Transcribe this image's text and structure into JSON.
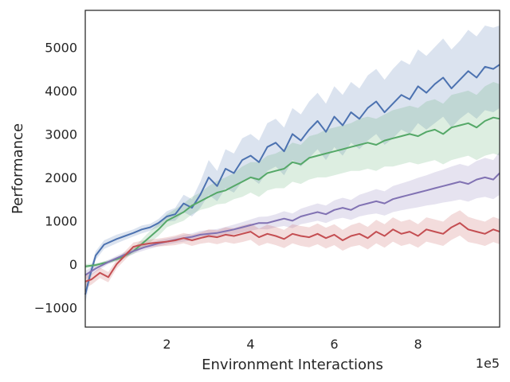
{
  "chart_data": {
    "type": "line",
    "xlabel": "Environment Interactions",
    "ylabel": "Performance",
    "x_offset_label": "1e5",
    "xlim": [
      0.05,
      9.95
    ],
    "ylim": [
      -1450,
      5850
    ],
    "xticks": [
      2,
      4,
      6,
      8
    ],
    "yticks": [
      -1000,
      0,
      1000,
      2000,
      3000,
      4000,
      5000
    ],
    "grid": false,
    "legend": "none",
    "series": [
      {
        "color": "#4c72b0",
        "x": [
          0.05,
          0.15,
          0.3,
          0.5,
          0.8,
          1.0,
          1.2,
          1.4,
          1.6,
          1.8,
          2.0,
          2.2,
          2.4,
          2.6,
          2.8,
          3.0,
          3.2,
          3.4,
          3.6,
          3.8,
          4.0,
          4.2,
          4.4,
          4.6,
          4.8,
          5.0,
          5.2,
          5.4,
          5.6,
          5.8,
          6.0,
          6.2,
          6.4,
          6.6,
          6.8,
          7.0,
          7.2,
          7.4,
          7.6,
          7.8,
          8.0,
          8.2,
          8.4,
          8.6,
          8.8,
          9.0,
          9.2,
          9.4,
          9.6,
          9.8,
          9.95
        ],
        "y": [
          -700,
          -300,
          200,
          450,
          580,
          650,
          720,
          800,
          850,
          950,
          1100,
          1150,
          1400,
          1300,
          1600,
          2000,
          1800,
          2200,
          2100,
          2400,
          2500,
          2350,
          2700,
          2800,
          2600,
          3000,
          2850,
          3100,
          3300,
          3050,
          3400,
          3200,
          3500,
          3350,
          3600,
          3750,
          3500,
          3700,
          3900,
          3800,
          4100,
          3950,
          4150,
          4300,
          4050,
          4250,
          4450,
          4300,
          4550,
          4500,
          4600
        ],
        "lower": [
          -900,
          -450,
          100,
          350,
          480,
          560,
          640,
          710,
          770,
          860,
          980,
          1000,
          1200,
          1100,
          1300,
          1600,
          1450,
          1750,
          1650,
          1900,
          2000,
          1850,
          2150,
          2250,
          2050,
          2400,
          2250,
          2450,
          2650,
          2400,
          2700,
          2500,
          2800,
          2650,
          2850,
          3000,
          2750,
          2900,
          3100,
          3000,
          3250,
          3100,
          3250,
          3400,
          3150,
          3350,
          3500,
          3350,
          3550,
          3500,
          3600
        ],
        "upper": [
          -500,
          -150,
          300,
          550,
          680,
          740,
          800,
          890,
          930,
          1040,
          1220,
          1300,
          1600,
          1500,
          1900,
          2400,
          2150,
          2650,
          2550,
          2900,
          3000,
          2850,
          3250,
          3350,
          3150,
          3600,
          3450,
          3750,
          3950,
          3700,
          4100,
          3900,
          4200,
          4050,
          4350,
          4500,
          4250,
          4500,
          4700,
          4600,
          4950,
          4800,
          5000,
          5200,
          4950,
          5150,
          5400,
          5250,
          5500,
          5450,
          5500
        ]
      },
      {
        "color": "#55a868",
        "x": [
          0.05,
          0.3,
          0.6,
          0.9,
          1.2,
          1.5,
          1.8,
          2.0,
          2.2,
          2.4,
          2.6,
          2.8,
          3.0,
          3.2,
          3.4,
          3.6,
          3.8,
          4.0,
          4.2,
          4.4,
          4.6,
          4.8,
          5.0,
          5.2,
          5.4,
          5.6,
          5.8,
          6.0,
          6.2,
          6.4,
          6.6,
          6.8,
          7.0,
          7.2,
          7.4,
          7.6,
          7.8,
          8.0,
          8.2,
          8.4,
          8.6,
          8.8,
          9.0,
          9.2,
          9.4,
          9.6,
          9.8,
          9.95
        ],
        "y": [
          -50,
          -20,
          50,
          150,
          300,
          550,
          800,
          1000,
          1100,
          1200,
          1350,
          1450,
          1550,
          1650,
          1700,
          1800,
          1900,
          2000,
          1950,
          2100,
          2150,
          2200,
          2350,
          2300,
          2450,
          2500,
          2550,
          2600,
          2650,
          2700,
          2750,
          2800,
          2750,
          2850,
          2900,
          2950,
          3000,
          2950,
          3050,
          3100,
          3000,
          3150,
          3200,
          3250,
          3150,
          3300,
          3380,
          3350
        ],
        "lower": [
          -100,
          -60,
          10,
          100,
          230,
          430,
          650,
          850,
          930,
          1000,
          1150,
          1250,
          1300,
          1380,
          1400,
          1500,
          1550,
          1650,
          1550,
          1700,
          1750,
          1750,
          1900,
          1850,
          1950,
          2000,
          2000,
          2050,
          2100,
          2150,
          2150,
          2200,
          2150,
          2250,
          2250,
          2300,
          2350,
          2300,
          2350,
          2400,
          2300,
          2400,
          2450,
          2500,
          2400,
          2500,
          2550,
          2500
        ],
        "upper": [
          0,
          20,
          90,
          200,
          370,
          670,
          950,
          1150,
          1270,
          1400,
          1550,
          1650,
          1800,
          1920,
          2000,
          2100,
          2250,
          2350,
          2350,
          2500,
          2550,
          2650,
          2800,
          2750,
          2950,
          3000,
          3100,
          3150,
          3200,
          3250,
          3350,
          3400,
          3350,
          3450,
          3550,
          3600,
          3650,
          3600,
          3750,
          3800,
          3700,
          3900,
          3950,
          4000,
          3900,
          4100,
          4200,
          4150
        ]
      },
      {
        "color": "#8172b3",
        "x": [
          0.05,
          0.3,
          0.6,
          0.9,
          1.2,
          1.5,
          1.8,
          2.0,
          2.2,
          2.4,
          2.6,
          2.8,
          3.0,
          3.2,
          3.4,
          3.6,
          3.8,
          4.0,
          4.2,
          4.4,
          4.6,
          4.8,
          5.0,
          5.2,
          5.4,
          5.6,
          5.8,
          6.0,
          6.2,
          6.4,
          6.6,
          6.8,
          7.0,
          7.2,
          7.4,
          7.6,
          7.8,
          8.0,
          8.2,
          8.4,
          8.6,
          8.8,
          9.0,
          9.2,
          9.4,
          9.6,
          9.8,
          9.95
        ],
        "y": [
          -250,
          -100,
          50,
          180,
          300,
          400,
          480,
          520,
          560,
          600,
          630,
          680,
          700,
          720,
          760,
          800,
          850,
          900,
          950,
          950,
          1000,
          1050,
          1000,
          1100,
          1150,
          1200,
          1150,
          1250,
          1300,
          1250,
          1350,
          1400,
          1450,
          1400,
          1500,
          1550,
          1600,
          1650,
          1700,
          1750,
          1800,
          1850,
          1900,
          1850,
          1950,
          2000,
          1950,
          2100
        ],
        "lower": [
          -350,
          -180,
          0,
          120,
          240,
          330,
          410,
          450,
          490,
          520,
          550,
          590,
          610,
          630,
          660,
          690,
          730,
          770,
          810,
          800,
          850,
          880,
          830,
          920,
          960,
          1000,
          950,
          1030,
          1070,
          1020,
          1100,
          1140,
          1170,
          1120,
          1200,
          1240,
          1280,
          1310,
          1350,
          1380,
          1420,
          1450,
          1490,
          1440,
          1520,
          1550,
          1500,
          1600
        ],
        "upper": [
          -150,
          -20,
          100,
          240,
          360,
          470,
          550,
          590,
          630,
          680,
          710,
          770,
          790,
          810,
          860,
          910,
          970,
          1030,
          1090,
          1100,
          1150,
          1220,
          1170,
          1280,
          1340,
          1400,
          1350,
          1470,
          1530,
          1480,
          1600,
          1660,
          1730,
          1680,
          1800,
          1860,
          1920,
          1990,
          2050,
          2120,
          2180,
          2250,
          2310,
          2260,
          2380,
          2450,
          2400,
          2600
        ]
      },
      {
        "color": "#c44e52",
        "x": [
          0.05,
          0.2,
          0.4,
          0.6,
          0.8,
          1.0,
          1.2,
          1.4,
          1.6,
          1.8,
          2.0,
          2.2,
          2.4,
          2.6,
          2.8,
          3.0,
          3.2,
          3.4,
          3.6,
          3.8,
          4.0,
          4.2,
          4.4,
          4.6,
          4.8,
          5.0,
          5.2,
          5.4,
          5.6,
          5.8,
          6.0,
          6.2,
          6.4,
          6.6,
          6.8,
          7.0,
          7.2,
          7.4,
          7.6,
          7.8,
          8.0,
          8.2,
          8.4,
          8.6,
          8.8,
          9.0,
          9.2,
          9.4,
          9.6,
          9.8,
          9.95
        ],
        "y": [
          -400,
          -350,
          -200,
          -300,
          0,
          200,
          400,
          450,
          480,
          500,
          520,
          550,
          600,
          550,
          600,
          650,
          620,
          680,
          650,
          700,
          750,
          620,
          700,
          650,
          580,
          700,
          650,
          620,
          700,
          600,
          680,
          550,
          650,
          700,
          600,
          750,
          650,
          800,
          700,
          750,
          650,
          800,
          750,
          700,
          850,
          950,
          800,
          750,
          700,
          800,
          750
        ],
        "lower": [
          -550,
          -470,
          -320,
          -420,
          -100,
          100,
          300,
          360,
          390,
          410,
          420,
          440,
          480,
          420,
          470,
          500,
          460,
          510,
          470,
          510,
          560,
          420,
          490,
          440,
          370,
          480,
          420,
          390,
          460,
          360,
          440,
          310,
          400,
          440,
          340,
          480,
          380,
          520,
          420,
          470,
          380,
          520,
          470,
          420,
          560,
          660,
          510,
          470,
          420,
          510,
          460
        ],
        "upper": [
          -250,
          -230,
          -80,
          -180,
          100,
          300,
          500,
          540,
          570,
          590,
          620,
          660,
          720,
          680,
          730,
          800,
          780,
          850,
          830,
          890,
          940,
          820,
          910,
          860,
          790,
          920,
          880,
          850,
          940,
          840,
          920,
          790,
          900,
          960,
          860,
          1020,
          920,
          1080,
          980,
          1030,
          920,
          1080,
          1030,
          980,
          1140,
          1240,
          1090,
          1030,
          980,
          1090,
          1040
        ]
      }
    ]
  }
}
